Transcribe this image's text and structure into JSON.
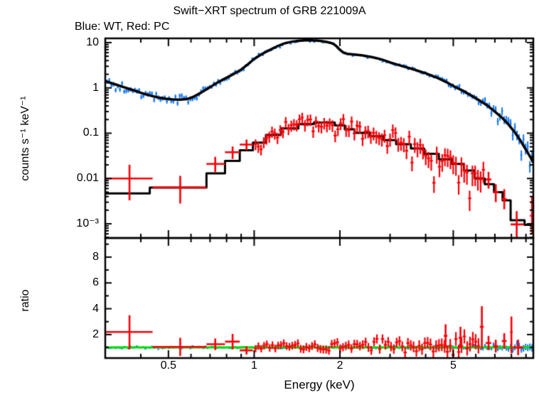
{
  "title": "Swift−XRT spectrum of GRB 221009A",
  "subtitle": "Blue: WT, Red: PC",
  "colors": {
    "wt_blue": "#1579f1",
    "pc_red": "#fb0006",
    "model_black": "#000000",
    "ratio_green": "#00dd00",
    "axis": "#000000",
    "background": "#ffffff"
  },
  "chart_data": [
    {
      "panel": "spectrum",
      "type": "scatter",
      "xscale": "log",
      "yscale": "log",
      "xlabel": "",
      "ylabel": "counts s⁻¹ keV⁻¹",
      "xlim": [
        0.3,
        9.55
      ],
      "ylim": [
        0.000486,
        12.4
      ],
      "x_axis": {
        "major_ticks": [
          {
            "value": 0.5,
            "label": "0.5"
          },
          {
            "value": 1,
            "label": "1"
          },
          {
            "value": 2,
            "label": "2"
          },
          {
            "value": 5,
            "label": "5"
          }
        ]
      },
      "y_axis": {
        "major_ticks": [
          {
            "value": 10,
            "label": "10"
          },
          {
            "value": 1,
            "label": "1"
          },
          {
            "value": 0.1,
            "label": "0.1"
          },
          {
            "value": 0.01,
            "label": "0.01"
          },
          {
            "value": 0.001,
            "label": "10⁻³"
          }
        ]
      },
      "series": [
        {
          "name": "WT model",
          "role": "model-line",
          "color_key": "model_black",
          "points": [
            [
              0.3,
              1.4
            ],
            [
              0.32,
              1.24
            ],
            [
              0.345,
              1.06
            ],
            [
              0.37,
              0.92
            ],
            [
              0.4,
              0.78
            ],
            [
              0.43,
              0.68
            ],
            [
              0.46,
              0.615
            ],
            [
              0.49,
              0.578
            ],
            [
              0.52,
              0.558
            ],
            [
              0.55,
              0.552
            ],
            [
              0.58,
              0.565
            ],
            [
              0.61,
              0.63
            ],
            [
              0.65,
              0.78
            ],
            [
              0.69,
              0.98
            ],
            [
              0.72,
              1.16
            ],
            [
              0.76,
              1.42
            ],
            [
              0.8,
              1.68
            ],
            [
              0.85,
              2.05
            ],
            [
              0.9,
              2.54
            ],
            [
              0.95,
              3.3
            ],
            [
              1.0,
              4.35
            ],
            [
              1.07,
              5.7
            ],
            [
              1.14,
              7.0
            ],
            [
              1.21,
              8.4
            ],
            [
              1.27,
              9.5
            ],
            [
              1.35,
              10.4
            ],
            [
              1.43,
              10.9
            ],
            [
              1.52,
              11.3
            ],
            [
              1.62,
              11.15
            ],
            [
              1.7,
              10.9
            ],
            [
              1.78,
              10.45
            ],
            [
              1.85,
              9.9
            ],
            [
              1.9,
              9.3
            ],
            [
              1.95,
              8.2
            ],
            [
              2.0,
              6.9
            ],
            [
              2.05,
              6.1
            ],
            [
              2.12,
              5.65
            ],
            [
              2.25,
              5.45
            ],
            [
              2.4,
              5.2
            ],
            [
              2.6,
              4.75
            ],
            [
              2.8,
              4.25
            ],
            [
              3.0,
              3.65
            ],
            [
              3.3,
              3.05
            ],
            [
              3.6,
              2.6
            ],
            [
              4.0,
              2.1
            ],
            [
              4.4,
              1.66
            ],
            [
              4.8,
              1.28
            ],
            [
              5.0,
              1.1
            ],
            [
              5.4,
              0.87
            ],
            [
              5.8,
              0.67
            ],
            [
              6.2,
              0.52
            ],
            [
              6.6,
              0.405
            ],
            [
              7.0,
              0.3
            ],
            [
              7.4,
              0.222
            ],
            [
              7.8,
              0.158
            ],
            [
              8.2,
              0.107
            ],
            [
              8.6,
              0.069
            ],
            [
              9.0,
              0.043
            ],
            [
              9.3,
              0.0305
            ],
            [
              9.55,
              0.0225
            ]
          ]
        },
        {
          "name": "PC model",
          "role": "model-steps",
          "color_key": "model_black",
          "bins": [
            [
              0.3,
              0.43,
              0.0047
            ],
            [
              0.43,
              0.68,
              0.0063
            ],
            [
              0.68,
              0.79,
              0.013
            ],
            [
              0.79,
              0.89,
              0.0245
            ],
            [
              0.89,
              0.99,
              0.042
            ],
            [
              0.99,
              1.1,
              0.062
            ],
            [
              1.1,
              1.24,
              0.091
            ],
            [
              1.24,
              1.43,
              0.127
            ],
            [
              1.43,
              1.62,
              0.158
            ],
            [
              1.62,
              1.92,
              0.172
            ],
            [
              1.92,
              2.08,
              0.149
            ],
            [
              2.08,
              2.25,
              0.122
            ],
            [
              2.25,
              2.55,
              0.102
            ],
            [
              2.55,
              2.85,
              0.086
            ],
            [
              2.85,
              3.15,
              0.07
            ],
            [
              3.15,
              3.55,
              0.057
            ],
            [
              3.55,
              3.95,
              0.046
            ],
            [
              3.95,
              4.45,
              0.035
            ],
            [
              4.45,
              4.95,
              0.0265
            ],
            [
              4.95,
              5.45,
              0.021
            ],
            [
              5.45,
              5.95,
              0.015
            ],
            [
              5.95,
              6.45,
              0.01
            ],
            [
              6.45,
              6.95,
              0.0075
            ],
            [
              6.95,
              7.45,
              0.005
            ],
            [
              7.45,
              7.95,
              0.0033
            ],
            [
              7.95,
              8.9,
              0.0012
            ],
            [
              8.9,
              9.55,
              0.00095
            ]
          ]
        },
        {
          "name": "WT data",
          "role": "scatter-gen",
          "color_key": "wt_blue",
          "follow": "wt",
          "seed": 101,
          "n": 200,
          "e_range": [
            0.302,
            9.53
          ],
          "xerr_frac": 0.008,
          "sigma": [
            [
              0.3,
              0.11
            ],
            [
              0.55,
              0.12
            ],
            [
              0.9,
              0.07
            ],
            [
              1.3,
              0.045
            ],
            [
              2.0,
              0.035
            ],
            [
              3.0,
              0.045
            ],
            [
              4.0,
              0.06
            ],
            [
              5.0,
              0.09
            ],
            [
              6.0,
              0.12
            ],
            [
              7.0,
              0.17
            ],
            [
              8.0,
              0.22
            ],
            [
              9.5,
              0.3
            ]
          ],
          "yerr_rel": [
            [
              0.3,
              0.12
            ],
            [
              0.55,
              0.13
            ],
            [
              0.9,
              0.08
            ],
            [
              1.3,
              0.05
            ],
            [
              2.0,
              0.04
            ],
            [
              3.0,
              0.05
            ],
            [
              4.0,
              0.07
            ],
            [
              5.0,
              0.1
            ],
            [
              6.0,
              0.13
            ],
            [
              7.0,
              0.19
            ],
            [
              8.0,
              0.25
            ],
            [
              9.5,
              0.33
            ]
          ]
        },
        {
          "name": "PC data sparse",
          "role": "scatter-explicit",
          "color_key": "pc_red",
          "points": [
            [
              0.365,
              0.01,
              0.3,
              0.44,
              0.0033,
              0.02
            ],
            [
              0.55,
              0.0063,
              0.44,
              0.68,
              0.0028,
              0.0115
            ],
            [
              0.73,
              0.021,
              0.68,
              0.79,
              0.014,
              0.03
            ],
            [
              0.84,
              0.038,
              0.79,
              0.89,
              0.027,
              0.051
            ],
            [
              0.94,
              0.056,
              0.89,
              0.99,
              0.042,
              0.072
            ],
            [
              6.65,
              0.0095,
              6.5,
              6.8,
              0.006,
              0.014
            ],
            [
              7.05,
              0.005,
              6.9,
              7.2,
              0.003,
              0.0075
            ],
            [
              7.55,
              0.0035,
              7.4,
              7.7,
              0.0021,
              0.0058
            ],
            [
              8.35,
              0.00097,
              7.95,
              8.85,
              0.0005,
              0.0019
            ],
            [
              9.45,
              0.0015,
              9.3,
              9.55,
              0.0006,
              0.004
            ]
          ]
        },
        {
          "name": "PC data dense",
          "role": "scatter-gen",
          "color_key": "pc_red",
          "follow": "pc",
          "seed": 202,
          "n": 84,
          "e_range": [
            1.0,
            6.45
          ],
          "xerr_frac": 0.013,
          "sigma": [
            [
              1.0,
              0.22
            ],
            [
              2.0,
              0.22
            ],
            [
              3.0,
              0.26
            ],
            [
              4.0,
              0.3
            ],
            [
              5.0,
              0.34
            ],
            [
              6.45,
              0.38
            ]
          ],
          "yerr_rel": [
            [
              1.0,
              0.3
            ],
            [
              2.0,
              0.32
            ],
            [
              3.0,
              0.36
            ],
            [
              4.0,
              0.42
            ],
            [
              5.0,
              0.5
            ],
            [
              6.45,
              0.55
            ]
          ]
        }
      ]
    },
    {
      "panel": "ratio",
      "type": "scatter",
      "xscale": "log",
      "yscale": "linear",
      "xlabel": "Energy (keV)",
      "ylabel": "ratio",
      "xlim": [
        0.3,
        9.55
      ],
      "ylim": [
        0.18,
        9.48
      ],
      "x_axis": {
        "major_ticks": [
          {
            "value": 0.5,
            "label": "0.5"
          },
          {
            "value": 1,
            "label": "1"
          },
          {
            "value": 2,
            "label": "2"
          },
          {
            "value": 5,
            "label": "5"
          }
        ]
      },
      "y_axis": {
        "major_ticks": [
          {
            "value": 8,
            "label": "8"
          },
          {
            "value": 6,
            "label": "6"
          },
          {
            "value": 4,
            "label": "4"
          },
          {
            "value": 2,
            "label": "2"
          }
        ],
        "minor_ticks": [
          1,
          3,
          5,
          7,
          9
        ]
      },
      "reference_line": {
        "y": 1.0,
        "color_key": "ratio_green"
      },
      "series": [
        {
          "name": "WT ratio",
          "role": "scatter-gen",
          "color_key": "wt_blue",
          "follow": "flat",
          "seed": 303,
          "n": 200,
          "e_range": [
            0.302,
            9.53
          ],
          "xerr_frac": 0.008,
          "center": [
            [
              0.3,
              0.97
            ],
            [
              0.5,
              0.98
            ],
            [
              1.0,
              1.0
            ],
            [
              5.0,
              1.0
            ],
            [
              9.5,
              1.01
            ]
          ],
          "sigma": [
            [
              0.3,
              0.055
            ],
            [
              0.7,
              0.05
            ],
            [
              1.5,
              0.04
            ],
            [
              3.0,
              0.045
            ],
            [
              5.0,
              0.08
            ],
            [
              7.0,
              0.13
            ],
            [
              9.5,
              0.22
            ]
          ],
          "yerr_abs": [
            [
              0.3,
              0.06
            ],
            [
              1.0,
              0.05
            ],
            [
              3.0,
              0.06
            ],
            [
              5.0,
              0.12
            ],
            [
              7.0,
              0.2
            ],
            [
              9.5,
              0.35
            ]
          ]
        },
        {
          "name": "PC ratio sparse",
          "role": "scatter-explicit",
          "color_key": "pc_red",
          "points": [
            [
              0.365,
              2.2,
              0.3,
              0.44,
              0.85,
              3.5
            ],
            [
              0.55,
              1.05,
              0.44,
              0.68,
              0.35,
              1.75
            ],
            [
              0.73,
              1.25,
              0.68,
              0.79,
              0.8,
              1.7
            ],
            [
              0.84,
              1.45,
              0.79,
              0.89,
              0.85,
              2.05
            ],
            [
              0.94,
              0.78,
              0.89,
              0.99,
              0.45,
              1.1
            ],
            [
              4.7,
              1.9,
              4.63,
              4.77,
              1.0,
              2.8
            ],
            [
              5.3,
              1.75,
              5.22,
              5.38,
              0.95,
              2.6
            ],
            [
              6.3,
              2.6,
              6.2,
              6.4,
              0.9,
              4.2
            ],
            [
              6.65,
              1.35,
              6.5,
              6.8,
              0.8,
              1.9
            ],
            [
              7.05,
              1.1,
              6.9,
              7.2,
              0.6,
              1.6
            ],
            [
              7.55,
              1.5,
              7.4,
              7.7,
              0.9,
              2.1
            ],
            [
              8.0,
              2.2,
              7.92,
              8.08,
              0.55,
              3.4
            ],
            [
              8.45,
              1.0,
              8.1,
              8.8,
              0.4,
              1.6
            ],
            [
              9.6,
              9.1,
              9.5,
              9.65,
              3.7,
              9.4
            ]
          ]
        },
        {
          "name": "PC ratio dense",
          "role": "scatter-gen",
          "color_key": "pc_red",
          "follow": "flat",
          "seed": 404,
          "n": 80,
          "e_range": [
            1.0,
            6.2
          ],
          "xerr_frac": 0.013,
          "center": [
            [
              1.0,
              1.05
            ],
            [
              3.0,
              1.08
            ],
            [
              6.2,
              1.1
            ]
          ],
          "sigma": [
            [
              1.0,
              0.18
            ],
            [
              2.0,
              0.2
            ],
            [
              3.0,
              0.24
            ],
            [
              4.0,
              0.28
            ],
            [
              5.0,
              0.33
            ],
            [
              6.2,
              0.38
            ]
          ],
          "yerr_abs": [
            [
              1.0,
              0.35
            ],
            [
              2.0,
              0.4
            ],
            [
              3.0,
              0.45
            ],
            [
              4.0,
              0.55
            ],
            [
              5.0,
              0.65
            ],
            [
              6.2,
              0.75
            ]
          ]
        }
      ]
    }
  ]
}
